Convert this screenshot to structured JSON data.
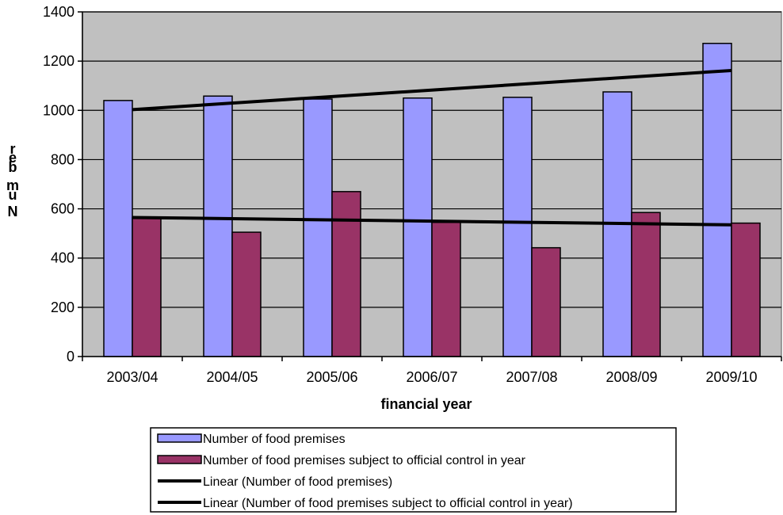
{
  "chart_data": {
    "type": "bar",
    "categories": [
      "2003/04",
      "2004/05",
      "2005/06",
      "2006/07",
      "2007/08",
      "2008/09",
      "2009/10"
    ],
    "series": [
      {
        "name": "Number of food premises",
        "color": "#9999ff",
        "values": [
          1040,
          1058,
          1046,
          1050,
          1053,
          1075,
          1272
        ]
      },
      {
        "name": "Number of food premises subject to official control in year",
        "color": "#993366",
        "values": [
          565,
          505,
          670,
          545,
          442,
          585,
          542
        ]
      }
    ],
    "trendlines": [
      {
        "name": "Linear (Number of food premises)",
        "color": "#000000",
        "start": 1003,
        "end": 1162
      },
      {
        "name": "Linear (Number of food premises subject to official control in year)",
        "color": "#000000",
        "start": 565,
        "end": 535
      }
    ],
    "xlabel": "financial year",
    "ylabel": "Number",
    "ylabel_rendered": "r e b m u N",
    "ylim": [
      0,
      1400
    ],
    "yticks": [
      0,
      200,
      400,
      600,
      800,
      1000,
      1200,
      1400
    ],
    "plot_background": "#c0c0c0",
    "grid": true,
    "legend_position": "bottom"
  }
}
